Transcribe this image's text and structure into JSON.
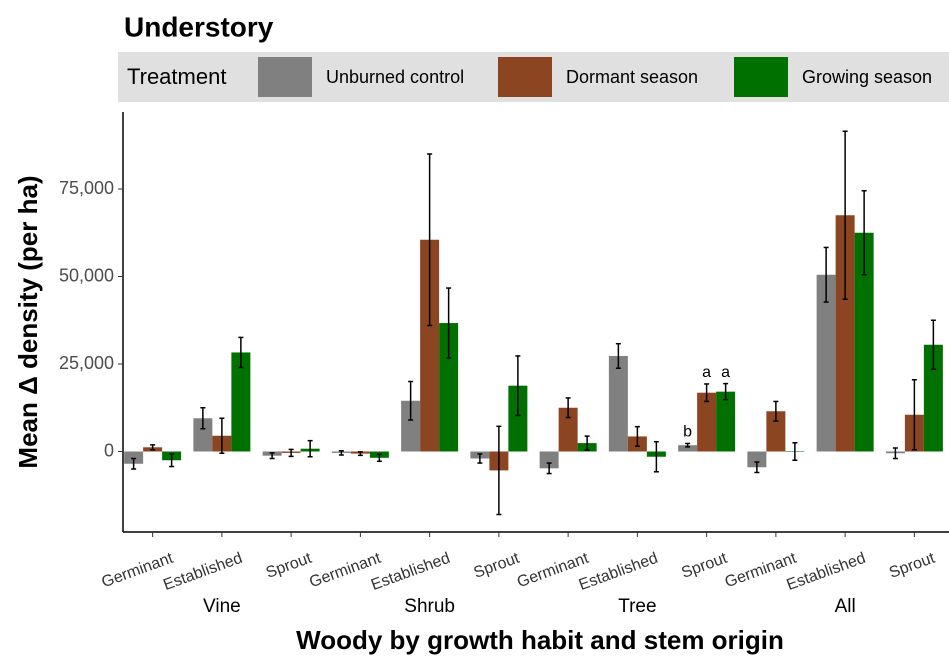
{
  "chart_data": {
    "type": "bar",
    "title": "Understory",
    "legend_title": "Treatment",
    "x_label": "Woody by growth habit and stem origin",
    "y_label": "Mean Δ density (per ha)",
    "groups": [
      "Vine",
      "Shrub",
      "Tree",
      "All"
    ],
    "categories": [
      "Germinant",
      "Established",
      "Sprout",
      "Germinant",
      "Established",
      "Sprout",
      "Germinant",
      "Established",
      "Sprout",
      "Germinant",
      "Established",
      "Sprout"
    ],
    "ylim": [
      -23000,
      97000
    ],
    "yticks": [
      0,
      {
        "value": 25000,
        "label": "25,000"
      },
      {
        "value": 50000,
        "label": "50,000"
      },
      {
        "value": 75000,
        "label": "75,000"
      }
    ],
    "series": [
      {
        "name": "Unburned control",
        "color": "#808080",
        "values": [
          -3500,
          9500,
          -1200,
          -400,
          14500,
          -2000,
          -4800,
          27300,
          1800,
          -4500,
          50500,
          -500
        ],
        "errors": [
          1500,
          3000,
          800,
          600,
          5500,
          1300,
          1500,
          3500,
          500,
          1500,
          7800,
          1500
        ],
        "letters": [
          null,
          null,
          null,
          null,
          null,
          null,
          null,
          null,
          "b",
          null,
          null,
          null
        ]
      },
      {
        "name": "Dormant season",
        "color": "#8b4520",
        "values": [
          1200,
          4500,
          -400,
          -600,
          60500,
          -5400,
          12500,
          4300,
          16800,
          11500,
          67500,
          10500
        ],
        "errors": [
          700,
          5000,
          1000,
          500,
          24500,
          12600,
          2800,
          2800,
          2500,
          2800,
          24000,
          10000
        ],
        "letters": [
          null,
          null,
          null,
          null,
          null,
          null,
          null,
          null,
          "a",
          null,
          null,
          null
        ]
      },
      {
        "name": "Growing season",
        "color": "#007000",
        "values": [
          -2500,
          28300,
          800,
          -1800,
          36700,
          18800,
          2400,
          -1500,
          17100,
          0,
          62500,
          30500
        ],
        "errors": [
          1800,
          4300,
          2300,
          1000,
          10000,
          8500,
          2000,
          4300,
          2300,
          2500,
          12000,
          7000
        ],
        "letters": [
          null,
          null,
          null,
          null,
          null,
          null,
          null,
          null,
          "a",
          null,
          null,
          null
        ]
      }
    ]
  }
}
